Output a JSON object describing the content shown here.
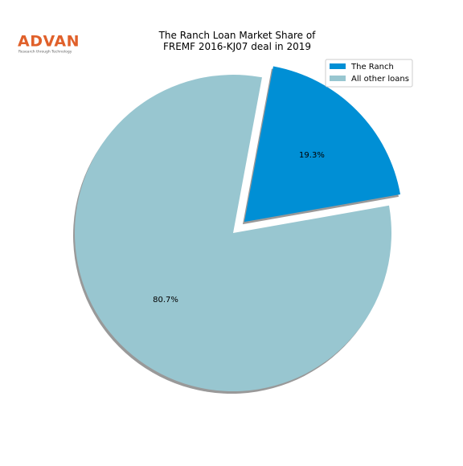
{
  "chart_data": {
    "type": "pie",
    "title": "The Ranch Loan Market Share of\nFREMF 2016-KJ07 deal in 2019",
    "logo": {
      "name": "ADVAN",
      "tagline": "Research through Technology"
    },
    "categories": [
      "The Ranch",
      "All other loans"
    ],
    "values": [
      19.3,
      80.7
    ],
    "value_labels": [
      "19.3%",
      "80.7%"
    ],
    "colors": [
      "#008fd5",
      "#98c6d0"
    ],
    "explode": [
      0.1,
      0
    ],
    "shadow": true,
    "legend": "upper right"
  }
}
